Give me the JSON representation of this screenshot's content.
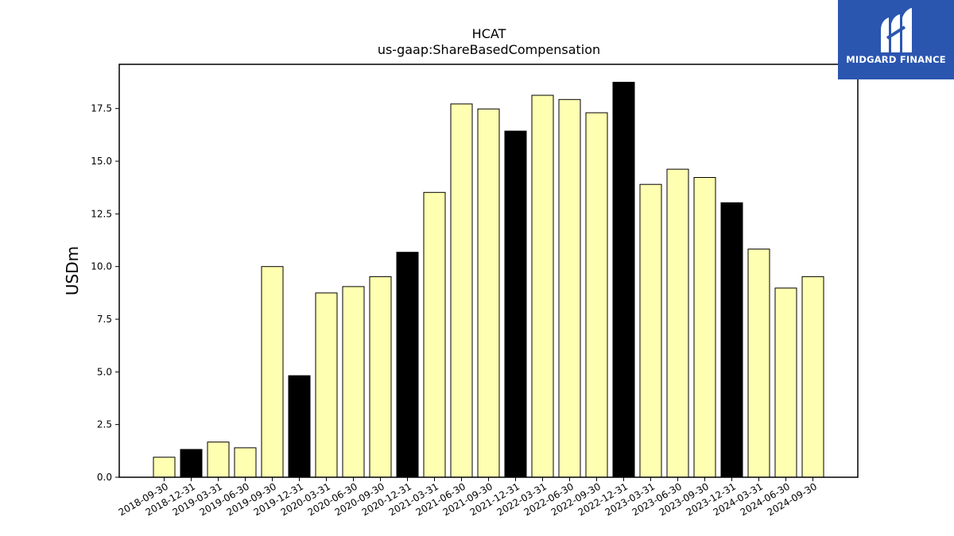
{
  "chart_data": {
    "type": "bar",
    "title": "HCAT",
    "subtitle": "us-gaap:ShareBasedCompensation",
    "xlabel": "",
    "ylabel": "USDm",
    "ylim": [
      0,
      19.6
    ],
    "yticks": [
      "0.0",
      "2.5",
      "5.0",
      "7.5",
      "10.0",
      "12.5",
      "15.0",
      "17.5"
    ],
    "grid": false,
    "colors": {
      "quarter": "#ffffb2",
      "year_end": "#000000",
      "edge": "#000000"
    },
    "categories": [
      "2018-09-30",
      "2018-12-31",
      "2019-03-31",
      "2019-06-30",
      "2019-09-30",
      "2019-12-31",
      "2020-03-31",
      "2020-06-30",
      "2020-09-30",
      "2020-12-31",
      "2021-03-31",
      "2021-06-30",
      "2021-09-30",
      "2021-12-31",
      "2022-03-31",
      "2022-06-30",
      "2022-09-30",
      "2022-12-31",
      "2023-03-31",
      "2023-06-30",
      "2023-09-30",
      "2023-12-31",
      "2024-03-31",
      "2024-06-30",
      "2024-09-30"
    ],
    "values": [
      0.95,
      1.32,
      1.67,
      1.4,
      10.0,
      4.82,
      8.75,
      9.05,
      9.52,
      10.68,
      13.52,
      17.72,
      17.48,
      16.43,
      18.13,
      17.93,
      17.3,
      18.75,
      13.9,
      14.62,
      14.23,
      13.03,
      10.83,
      8.98,
      9.52
    ],
    "highlight": [
      false,
      true,
      false,
      false,
      false,
      true,
      false,
      false,
      false,
      true,
      false,
      false,
      false,
      true,
      false,
      false,
      false,
      true,
      false,
      false,
      false,
      true,
      false,
      false,
      false
    ]
  },
  "logo": {
    "text": "MIDGARD FINANCE",
    "icon": "midgard-logo-icon",
    "background": "#2b56b0"
  }
}
